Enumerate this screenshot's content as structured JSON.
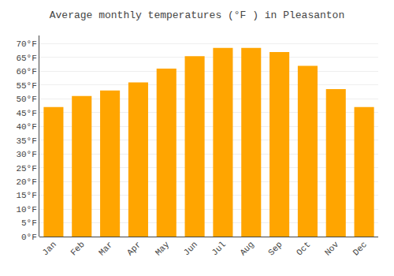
{
  "chart_data": {
    "type": "bar",
    "title": "Average monthly temperatures (°F ) in Pleasanton",
    "categories": [
      "Jan",
      "Feb",
      "Mar",
      "Apr",
      "May",
      "Jun",
      "Jul",
      "Aug",
      "Sep",
      "Oct",
      "Nov",
      "Dec"
    ],
    "values": [
      47,
      51,
      53,
      56,
      61,
      65.5,
      68.5,
      68.5,
      67,
      62,
      53.5,
      47
    ],
    "color": "#FFA500",
    "ylim": [
      0,
      73
    ],
    "yticks": [
      {
        "value": 0,
        "label": "0°F"
      },
      {
        "value": 5,
        "label": "5°F"
      },
      {
        "value": 10,
        "label": "10°F"
      },
      {
        "value": 15,
        "label": "15°F"
      },
      {
        "value": 20,
        "label": "20°F"
      },
      {
        "value": 25,
        "label": "25°F"
      },
      {
        "value": 30,
        "label": "30°F"
      },
      {
        "value": 35,
        "label": "35°F"
      },
      {
        "value": 40,
        "label": "40°F"
      },
      {
        "value": 45,
        "label": "45°F"
      },
      {
        "value": 50,
        "label": "50°F"
      },
      {
        "value": 55,
        "label": "55°F"
      },
      {
        "value": 60,
        "label": "60°F"
      },
      {
        "value": 65,
        "label": "65°F"
      },
      {
        "value": 70,
        "label": "70°F"
      }
    ],
    "grid": true
  }
}
